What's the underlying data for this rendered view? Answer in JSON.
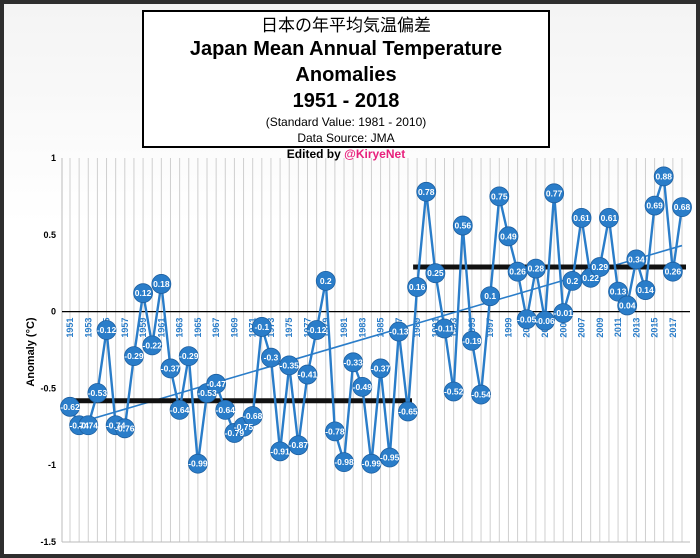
{
  "title_jp": "日本の年平均気温偏差",
  "title_main": "Japan Mean Annual Temperature Anomalies",
  "title_years": "1951 - 2018",
  "subtitle_standard": "(Standard Value: 1981 - 2010)",
  "subtitle_source": "Data Source: JMA",
  "edited_prefix": "Edited by ",
  "edited_handle": "@KiryeNet",
  "colors": {
    "line": "#2a7dc9",
    "marker": "#2a7dc9",
    "trend": "#2a7dc9",
    "step": "#111111",
    "label": "#ffffff"
  },
  "chart_data": {
    "type": "line",
    "xlabel": "",
    "ylabel": "Anomaly (°C)",
    "ylim": [
      -1.5,
      1
    ],
    "yticks": [
      "1",
      "0.5",
      "0",
      "-0.5",
      "-1",
      "-1.5"
    ],
    "xtick_years": [
      1951,
      1953,
      1955,
      1957,
      1959,
      1961,
      1963,
      1965,
      1967,
      1969,
      1971,
      1973,
      1975,
      1977,
      1979,
      1981,
      1983,
      1985,
      1987,
      1989,
      1991,
      1993,
      1995,
      1997,
      1999,
      2001,
      2003,
      2005,
      2007,
      2009,
      2011,
      2013,
      2015,
      2017
    ],
    "grid": "vertical",
    "x": [
      1951,
      1952,
      1953,
      1954,
      1955,
      1956,
      1957,
      1958,
      1959,
      1960,
      1961,
      1962,
      1963,
      1964,
      1965,
      1966,
      1967,
      1968,
      1969,
      1970,
      1971,
      1972,
      1973,
      1974,
      1975,
      1976,
      1977,
      1978,
      1979,
      1980,
      1981,
      1982,
      1983,
      1984,
      1985,
      1986,
      1987,
      1988,
      1989,
      1990,
      1991,
      1992,
      1993,
      1994,
      1995,
      1996,
      1997,
      1998,
      1999,
      2000,
      2001,
      2002,
      2003,
      2004,
      2005,
      2006,
      2007,
      2008,
      2009,
      2010,
      2011,
      2012,
      2013,
      2014,
      2015,
      2016,
      2017,
      2018
    ],
    "series": [
      {
        "values": [
          -0.62,
          -0.74,
          -0.74,
          -0.53,
          -0.12,
          -0.74,
          -0.76,
          -0.29,
          0.12,
          -0.22,
          0.18,
          -0.37,
          -0.64,
          -0.29,
          -0.99,
          -0.53,
          -0.47,
          -0.64,
          -0.79,
          -0.75,
          -0.68,
          -0.1,
          -0.3,
          -0.91,
          -0.35,
          -0.87,
          -0.41,
          -0.12,
          0.2,
          -0.78,
          -0.98,
          -0.33,
          -0.49,
          -0.99,
          -0.37,
          -0.95,
          -0.13,
          -0.65,
          0.16,
          0.78,
          0.25,
          -0.11,
          -0.52,
          0.56,
          -0.19,
          -0.54,
          0.1,
          0.75,
          0.49,
          0.26,
          -0.05,
          0.28,
          -0.06,
          0.77,
          -0.01,
          0.2,
          0.61,
          0.22,
          0.29,
          0.61,
          0.13,
          0.04,
          0.34,
          0.14,
          0.69,
          0.88,
          0.26,
          0.68
        ],
        "labels": [
          "-0.62",
          "-0.74",
          "-0.74",
          "-0.53",
          "-0.12",
          "-0.74",
          "-0.76",
          "-0.29",
          "0.12",
          "-0.22",
          "0.18",
          "-0.37",
          "-0.64",
          "-0.29",
          "-0.99",
          "-0.53",
          "-0.47",
          "-0.64",
          "-0.79",
          "-0.75",
          "-0.68",
          "-0.1",
          "-0.3",
          "-0.91",
          "-0.35",
          "-0.87",
          "-0.41",
          "-0.12",
          "0.2",
          "-0.78",
          "-0.98",
          "-0.33",
          "-0.49",
          "-0.99",
          "-0.37",
          "-0.95",
          "-0.13",
          "-0.65",
          "0.16",
          "0.78",
          "0.25",
          "-0.11",
          "-0.52",
          "0.56",
          "-0.19",
          "-0.54",
          "0.1",
          "0.75",
          "0.49",
          "0.26",
          "-0.05",
          "0.28",
          "-0.06",
          "0.77",
          "-0.01",
          "0.2",
          "0.61",
          "0.22",
          "0.29",
          "0.61",
          "0.13",
          "0.04",
          "0.34",
          "0.14",
          "0.69",
          "0.88",
          "0.26",
          "0.68"
        ]
      }
    ],
    "trend": {
      "x": [
        1951,
        2018
      ],
      "y": [
        -0.74,
        0.43
      ]
    },
    "steps": [
      {
        "x": [
          1951,
          1988
        ],
        "y": -0.58
      },
      {
        "x": [
          1989,
          2018
        ],
        "y": 0.29
      }
    ],
    "zero_line": 0
  }
}
